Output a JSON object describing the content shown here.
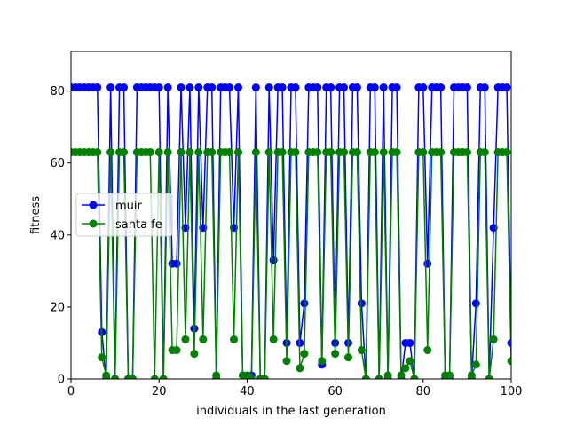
{
  "chart_data": {
    "type": "line",
    "title": "",
    "xlabel": "individuals in the last generation",
    "ylabel": "fitness",
    "xlim": [
      0,
      100
    ],
    "ylim": [
      0,
      91
    ],
    "xticks": [
      0,
      20,
      40,
      60,
      80,
      100
    ],
    "yticks": [
      0,
      20,
      40,
      60,
      80
    ],
    "grid": false,
    "legend_placement": "center-left",
    "x": [
      0,
      1,
      2,
      3,
      4,
      5,
      6,
      7,
      8,
      9,
      10,
      11,
      12,
      13,
      14,
      15,
      16,
      17,
      18,
      19,
      20,
      21,
      22,
      23,
      24,
      25,
      26,
      27,
      28,
      29,
      30,
      31,
      32,
      33,
      34,
      35,
      36,
      37,
      38,
      39,
      40,
      41,
      42,
      43,
      44,
      45,
      46,
      47,
      48,
      49,
      50,
      51,
      52,
      53,
      54,
      55,
      56,
      57,
      58,
      59,
      60,
      61,
      62,
      63,
      64,
      65,
      66,
      67,
      68,
      69,
      70,
      71,
      72,
      73,
      74,
      75,
      76,
      77,
      78,
      79,
      80,
      81,
      82,
      83,
      84,
      85,
      86,
      87,
      88,
      89,
      90,
      91,
      92,
      93,
      94,
      95,
      96,
      97,
      98,
      99,
      100
    ],
    "series": [
      {
        "name": "muir",
        "color": "#0000ff",
        "values": [
          81,
          81,
          81,
          81,
          81,
          81,
          81,
          13,
          0,
          81,
          0,
          81,
          81,
          0,
          0,
          81,
          81,
          81,
          81,
          81,
          81,
          0,
          81,
          32,
          32,
          81,
          42,
          81,
          14,
          81,
          42,
          81,
          81,
          0,
          81,
          81,
          81,
          42,
          81,
          1,
          0,
          1,
          81,
          0,
          0,
          81,
          33,
          81,
          81,
          10,
          81,
          81,
          10,
          21,
          81,
          81,
          81,
          4,
          81,
          81,
          10,
          81,
          81,
          10,
          81,
          81,
          21,
          0,
          81,
          81,
          0,
          81,
          0,
          81,
          81,
          0,
          10,
          10,
          0,
          81,
          81,
          32,
          81,
          81,
          81,
          0,
          0,
          81,
          81,
          81,
          81,
          0,
          21,
          81,
          81,
          0,
          42,
          81,
          81,
          81,
          10
        ]
      },
      {
        "name": "santa fe",
        "color": "#008000",
        "values": [
          63,
          63,
          63,
          63,
          63,
          63,
          63,
          6,
          1,
          63,
          0,
          63,
          63,
          0,
          0,
          63,
          63,
          63,
          63,
          0,
          63,
          0,
          63,
          8,
          8,
          63,
          11,
          63,
          7,
          63,
          11,
          63,
          63,
          1,
          63,
          63,
          63,
          11,
          63,
          1,
          1,
          0,
          63,
          0,
          0,
          63,
          11,
          63,
          63,
          5,
          63,
          63,
          3,
          7,
          63,
          63,
          63,
          5,
          63,
          63,
          7,
          63,
          63,
          6,
          63,
          63,
          8,
          0,
          63,
          63,
          0,
          63,
          1,
          63,
          63,
          1,
          3,
          5,
          0,
          63,
          63,
          8,
          63,
          63,
          63,
          1,
          1,
          63,
          63,
          63,
          63,
          1,
          4,
          63,
          63,
          0,
          11,
          63,
          63,
          63,
          5
        ]
      }
    ]
  }
}
